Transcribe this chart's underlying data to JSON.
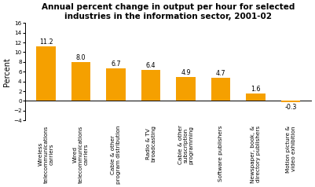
{
  "title": "Annual percent change in output per hour for selected\nindustries in the information sector, 2001-02",
  "categories": [
    "Wireless\ntelecommunications\ncarriers",
    "Wired\ntelecommunications\ncarriers",
    "Cable & other\nprogram distribution",
    "Radio & TV\nbroadcasting",
    "Cable & other\nsubscription\nprogramming",
    "Software publishers",
    "Newspaper, book, &\ndirectory publishers",
    "Motion picture &\nvideo exhibition"
  ],
  "values": [
    11.2,
    8.0,
    6.7,
    6.4,
    4.9,
    4.7,
    1.6,
    -0.3
  ],
  "bar_color": "#F5A000",
  "ylabel": "Percent",
  "ylim": [
    -4,
    16
  ],
  "yticks": [
    -4,
    -2,
    0,
    2,
    4,
    6,
    8,
    10,
    12,
    14,
    16
  ],
  "title_fontsize": 7.5,
  "label_fontsize": 5.2,
  "value_fontsize": 5.8,
  "ylabel_fontsize": 7
}
